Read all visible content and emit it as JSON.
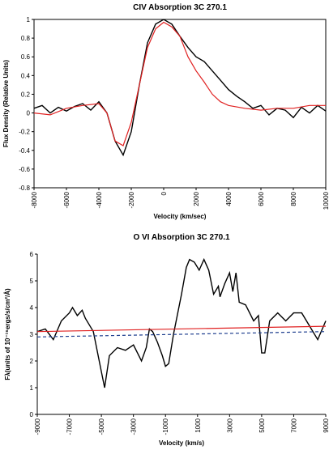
{
  "chart_data": [
    {
      "type": "line",
      "title": "CIV Absorption 3C 270.1",
      "xlabel": "Velocity (km/sec)",
      "ylabel": "Flux Density (Relative Units)",
      "xlim": [
        -8000,
        10000
      ],
      "xticks": [
        -8000,
        -6000,
        -4000,
        -2000,
        0,
        2000,
        4000,
        6000,
        8000,
        10000
      ],
      "ylim": [
        -0.8,
        1
      ],
      "yticks": [
        -0.8,
        -0.6,
        -0.4,
        -0.2,
        0,
        0.2,
        0.4,
        0.6,
        0.8,
        1
      ],
      "frame": true,
      "series": [
        {
          "color": "#000000",
          "x": [
            -8000,
            -7500,
            -7000,
            -6500,
            -6000,
            -5500,
            -5000,
            -4500,
            -4000,
            -3500,
            -3000,
            -2500,
            -2000,
            -1500,
            -1000,
            -500,
            0,
            500,
            1000,
            1500,
            2000,
            2500,
            3000,
            3500,
            4000,
            4500,
            5000,
            5500,
            6000,
            6500,
            7000,
            7500,
            8000,
            8500,
            9000,
            9500,
            10000
          ],
          "values": [
            0.05,
            0.08,
            0.0,
            0.06,
            0.02,
            0.07,
            0.1,
            0.03,
            0.12,
            0.0,
            -0.3,
            -0.45,
            -0.2,
            0.3,
            0.75,
            0.95,
            1.0,
            0.95,
            0.82,
            0.7,
            0.6,
            0.55,
            0.45,
            0.35,
            0.25,
            0.18,
            0.12,
            0.05,
            0.08,
            -0.02,
            0.05,
            0.03,
            -0.05,
            0.06,
            0.0,
            0.08,
            0.02
          ]
        },
        {
          "color": "#e02020",
          "x": [
            -8000,
            -7000,
            -6000,
            -5000,
            -4000,
            -3500,
            -3000,
            -2500,
            -2000,
            -1500,
            -1000,
            -500,
            0,
            500,
            1000,
            1500,
            2000,
            2500,
            3000,
            3500,
            4000,
            5000,
            6000,
            7000,
            8000,
            9000,
            10000
          ],
          "values": [
            0,
            -0.02,
            0.05,
            0.08,
            0.1,
            0.0,
            -0.3,
            -0.35,
            -0.1,
            0.3,
            0.7,
            0.9,
            0.97,
            0.92,
            0.82,
            0.6,
            0.45,
            0.33,
            0.2,
            0.12,
            0.08,
            0.05,
            0.03,
            0.05,
            0.05,
            0.08,
            0.08
          ]
        }
      ]
    },
    {
      "type": "line",
      "title": "O VI Absorption 3C 270.1",
      "xlabel": "Velocity (km/s)",
      "ylabel": "Fλ(units of 10⁻¹⁶ergs/s/cm²/Å)",
      "xlim": [
        -9000,
        9000
      ],
      "xticks": [
        -9000,
        -7000,
        -5000,
        -3000,
        -1000,
        1000,
        3000,
        5000,
        7000,
        9000
      ],
      "ylim": [
        0,
        6
      ],
      "yticks": [
        0,
        1,
        2,
        3,
        4,
        5,
        6
      ],
      "frame": false,
      "series": [
        {
          "color": "#000000",
          "x": [
            -9000,
            -8500,
            -8000,
            -7500,
            -7000,
            -6800,
            -6500,
            -6200,
            -6000,
            -5500,
            -5000,
            -4800,
            -4500,
            -4000,
            -3500,
            -3000,
            -2500,
            -2200,
            -2000,
            -1800,
            -1500,
            -1200,
            -1000,
            -800,
            -500,
            0,
            300,
            500,
            800,
            1100,
            1400,
            1700,
            2000,
            2300,
            2400,
            2700,
            3000,
            3200,
            3400,
            3600,
            4000,
            4500,
            4800,
            5000,
            5200,
            5500,
            6000,
            6500,
            7000,
            7500,
            8000,
            8500,
            9000
          ],
          "values": [
            3.1,
            3.2,
            2.8,
            3.5,
            3.8,
            4.0,
            3.7,
            3.9,
            3.6,
            3.1,
            1.6,
            1.0,
            2.2,
            2.5,
            2.4,
            2.6,
            2.0,
            2.5,
            3.2,
            3.1,
            2.7,
            2.2,
            1.8,
            1.9,
            3.0,
            4.5,
            5.5,
            5.8,
            5.7,
            5.4,
            5.8,
            5.4,
            4.5,
            4.8,
            4.4,
            4.9,
            5.3,
            4.6,
            5.3,
            4.2,
            4.1,
            3.5,
            3.7,
            2.3,
            2.3,
            3.5,
            3.8,
            3.5,
            3.8,
            3.8,
            3.3,
            2.8,
            3.5
          ]
        },
        {
          "color": "#e02020",
          "x": [
            -9000,
            9000
          ],
          "values": [
            3.1,
            3.3
          ]
        },
        {
          "color": "#1f3f8f",
          "dash": true,
          "x": [
            -9000,
            9000
          ],
          "values": [
            2.9,
            3.1
          ]
        }
      ]
    }
  ]
}
